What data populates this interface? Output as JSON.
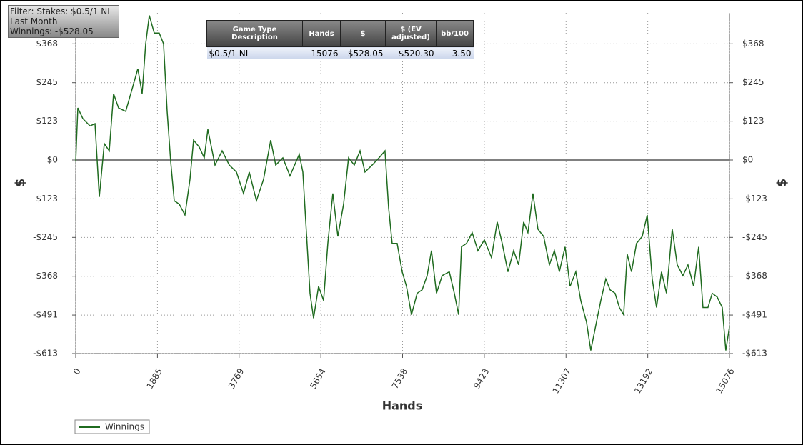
{
  "chart_data": {
    "type": "line",
    "xlabel": "Hands",
    "ylabel": "$",
    "xlim": [
      0,
      15076
    ],
    "ylim": [
      -613,
      466
    ],
    "xticks": [
      0,
      1885,
      3769,
      5654,
      7538,
      9423,
      11307,
      13192,
      15076
    ],
    "yticks": [
      {
        "value": -613,
        "label": "-$613"
      },
      {
        "value": -491,
        "label": "-$491"
      },
      {
        "value": -368,
        "label": "-$368"
      },
      {
        "value": -245,
        "label": "-$245"
      },
      {
        "value": -123,
        "label": "-$123"
      },
      {
        "value": 0,
        "label": "$0"
      },
      {
        "value": 123,
        "label": "$123"
      },
      {
        "value": 245,
        "label": "$245"
      },
      {
        "value": 368,
        "label": "$368"
      }
    ],
    "grid": true,
    "legend": "bottom-left",
    "x": [
      0,
      49,
      165,
      330,
      445,
      544,
      659,
      774,
      873,
      988,
      1153,
      1318,
      1433,
      1532,
      1614,
      1697,
      1812,
      1927,
      2026,
      2109,
      2191,
      2273,
      2389,
      2520,
      2636,
      2718,
      2850,
      2965,
      3048,
      3213,
      3377,
      3542,
      3707,
      3871,
      4003,
      4168,
      4333,
      4498,
      4613,
      4778,
      4942,
      5156,
      5239,
      5321,
      5404,
      5486,
      5601,
      5717,
      5815,
      5930,
      6046,
      6178,
      6293,
      6425,
      6557,
      6672,
      6837,
      6996,
      7133,
      7216,
      7298,
      7413,
      7529,
      7628,
      7743,
      7875,
      7990,
      8105,
      8204,
      8320,
      8451,
      8616,
      8731,
      8830,
      8896,
      9012,
      9143,
      9275,
      9423,
      9588,
      9720,
      9835,
      9967,
      10099,
      10214,
      10329,
      10428,
      10544,
      10659,
      10791,
      10923,
      11038,
      11153,
      11285,
      11400,
      11532,
      11647,
      11779,
      11878,
      11993,
      12109,
      12224,
      12323,
      12438,
      12537,
      12636,
      12718,
      12817,
      12932,
      13064,
      13180,
      13295,
      13394,
      13509,
      13624,
      13756,
      13872,
      14003,
      14119,
      14250,
      14366,
      14465,
      14580,
      14679,
      14794,
      14910,
      14992,
      15076
    ],
    "series": [
      {
        "name": "Winnings",
        "color": "#1f6b1f",
        "values": [
          -5,
          165,
          131,
          108,
          115,
          -117,
          52,
          29,
          210,
          165,
          154,
          233,
          289,
          210,
          368,
          458,
          402,
          402,
          368,
          154,
          -5,
          -129,
          -140,
          -174,
          -61,
          63,
          41,
          7,
          97,
          -16,
          29,
          -16,
          -38,
          -106,
          -38,
          -129,
          -61,
          63,
          -16,
          7,
          -50,
          18,
          -38,
          -230,
          -422,
          -501,
          -400,
          -445,
          -264,
          -106,
          -242,
          -140,
          7,
          -16,
          29,
          -38,
          -16,
          7,
          29,
          -151,
          -264,
          -264,
          -354,
          -400,
          -490,
          -422,
          -411,
          -366,
          -287,
          -422,
          -366,
          -354,
          -422,
          -490,
          -275,
          -264,
          -230,
          -287,
          -253,
          -309,
          -196,
          -264,
          -354,
          -287,
          -332,
          -196,
          -230,
          -106,
          -219,
          -242,
          -332,
          -287,
          -354,
          -275,
          -400,
          -354,
          -445,
          -513,
          -603,
          -524,
          -445,
          -377,
          -411,
          -422,
          -467,
          -490,
          -298,
          -354,
          -264,
          -242,
          -174,
          -377,
          -467,
          -354,
          -422,
          -219,
          -332,
          -366,
          -332,
          -400,
          -275,
          -467,
          -467,
          -422,
          -434,
          -467,
          -603,
          -528.05
        ]
      }
    ]
  },
  "filter_box": [
    "Filter: Stakes: $0.5/1 NL",
    "Last Month",
    "Winnings: -$528.05"
  ],
  "table": {
    "columns": [
      "Game Type Description",
      "Hands",
      "$",
      "$ (EV adjusted)",
      "bb/100"
    ],
    "rows": [
      [
        "$0.5/1 NL",
        "15076",
        "-$528.05",
        "-$520.30",
        "-3.50"
      ]
    ]
  }
}
